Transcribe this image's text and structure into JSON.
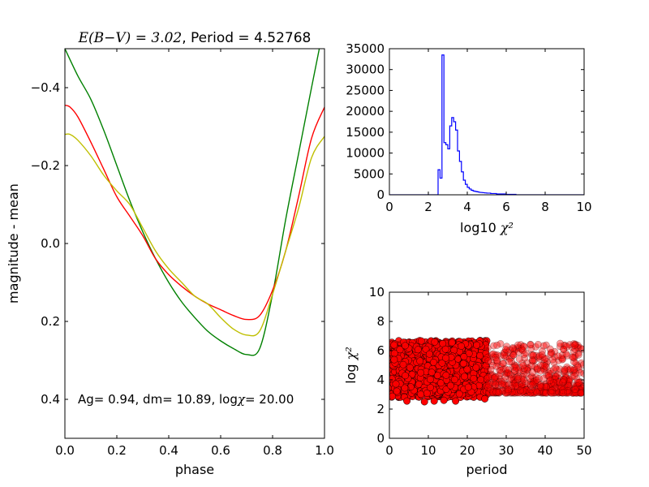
{
  "chart_data": [
    {
      "type": "line",
      "title_math": "E(B−V) = 3.02",
      "title_text": ", Period = 4.52768",
      "xlabel": "phase",
      "ylabel": "magnitude - mean",
      "xlim": [
        0.0,
        1.0
      ],
      "ylim": [
        0.5,
        -0.5
      ],
      "y_inverted": true,
      "xticks": [
        "0.0",
        "0.2",
        "0.4",
        "0.6",
        "0.8",
        "1.0"
      ],
      "yticks": [
        "−0.4",
        "−0.2",
        "0.0",
        "0.2",
        "0.4"
      ],
      "annotation_prefix": "Ag= 0.94, dm=  10.89, log",
      "annotation_math": "χ",
      "annotation_suffix": "=  20.00",
      "grid": false,
      "series": [
        {
          "color": "#008000",
          "x": [
            0.0,
            0.05,
            0.1,
            0.15,
            0.2,
            0.25,
            0.3,
            0.35,
            0.4,
            0.45,
            0.5,
            0.55,
            0.6,
            0.65,
            0.7,
            0.75,
            0.8,
            0.85,
            0.9,
            0.95,
            0.98
          ],
          "y": [
            -0.5,
            -0.43,
            -0.37,
            -0.29,
            -0.2,
            -0.11,
            -0.03,
            0.04,
            0.1,
            0.15,
            0.19,
            0.225,
            0.25,
            0.27,
            0.285,
            0.27,
            0.13,
            -0.06,
            -0.23,
            -0.4,
            -0.5
          ]
        },
        {
          "color": "#ff0000",
          "x": [
            0.0,
            0.02,
            0.05,
            0.1,
            0.15,
            0.2,
            0.25,
            0.3,
            0.35,
            0.4,
            0.45,
            0.5,
            0.55,
            0.6,
            0.65,
            0.7,
            0.75,
            0.8,
            0.85,
            0.9,
            0.95,
            1.0
          ],
          "y": [
            -0.355,
            -0.35,
            -0.325,
            -0.26,
            -0.19,
            -0.12,
            -0.07,
            -0.02,
            0.04,
            0.08,
            0.11,
            0.135,
            0.155,
            0.17,
            0.185,
            0.195,
            0.185,
            0.12,
            0.02,
            -0.12,
            -0.27,
            -0.35
          ]
        },
        {
          "color": "#bfbf00",
          "x": [
            0.0,
            0.02,
            0.05,
            0.1,
            0.15,
            0.2,
            0.25,
            0.3,
            0.35,
            0.4,
            0.45,
            0.5,
            0.55,
            0.6,
            0.65,
            0.7,
            0.75,
            0.8,
            0.85,
            0.9,
            0.95,
            1.0
          ],
          "y": [
            -0.28,
            -0.28,
            -0.265,
            -0.225,
            -0.175,
            -0.135,
            -0.1,
            -0.04,
            0.02,
            0.065,
            0.1,
            0.135,
            0.155,
            0.19,
            0.22,
            0.235,
            0.225,
            0.13,
            0.02,
            -0.09,
            -0.22,
            -0.275
          ]
        }
      ]
    },
    {
      "type": "histogram",
      "xlabel_text": "log10 ",
      "xlabel_math": "χ²",
      "xlim": [
        0,
        10
      ],
      "ylim": [
        0,
        35000
      ],
      "xticks": [
        "0",
        "2",
        "4",
        "6",
        "8",
        "10"
      ],
      "yticks": [
        "0",
        "5000",
        "10000",
        "15000",
        "20000",
        "25000",
        "30000",
        "35000"
      ],
      "color": "#0000ff",
      "bin_width": 0.1,
      "bins_start": [
        2.5,
        2.6,
        2.7,
        2.8,
        2.9,
        3.0,
        3.1,
        3.2,
        3.3,
        3.4,
        3.5,
        3.6,
        3.7,
        3.8,
        3.9,
        4.0,
        4.1,
        4.2,
        4.3,
        4.4,
        4.5,
        4.6,
        4.7,
        4.8,
        4.9,
        5.0,
        5.2,
        5.5,
        6.0,
        6.5
      ],
      "counts": [
        6000,
        4000,
        33500,
        12500,
        12000,
        11000,
        16500,
        18500,
        17500,
        15500,
        10500,
        8000,
        5500,
        3500,
        2500,
        1800,
        1400,
        1100,
        900,
        800,
        700,
        600,
        550,
        500,
        450,
        400,
        300,
        200,
        100,
        0
      ]
    },
    {
      "type": "scatter",
      "xlabel": "period",
      "ylabel_text": "log ",
      "ylabel_math": "χ²",
      "xlim": [
        0,
        50
      ],
      "ylim": [
        0,
        10
      ],
      "xticks": [
        "0",
        "10",
        "20",
        "30",
        "40",
        "50"
      ],
      "yticks": [
        "0",
        "2",
        "4",
        "6",
        "8",
        "10"
      ],
      "marker_color": "#ff0000",
      "marker_edge": "#000000",
      "opacity_light": 0.4,
      "opacity_dense": 0.9,
      "dense_region": {
        "x": [
          0.5,
          25
        ],
        "y": [
          2.5,
          6.7
        ]
      },
      "sparse_region": {
        "x": [
          25,
          50
        ],
        "y": [
          2.9,
          6.3
        ]
      },
      "low_points": [
        {
          "x": 4.5,
          "y": 2.55
        },
        {
          "x": 9,
          "y": 2.5
        },
        {
          "x": 11.5,
          "y": 2.55
        },
        {
          "x": 14,
          "y": 2.6
        },
        {
          "x": 17,
          "y": 2.55
        },
        {
          "x": 24.5,
          "y": 2.7
        }
      ]
    }
  ]
}
